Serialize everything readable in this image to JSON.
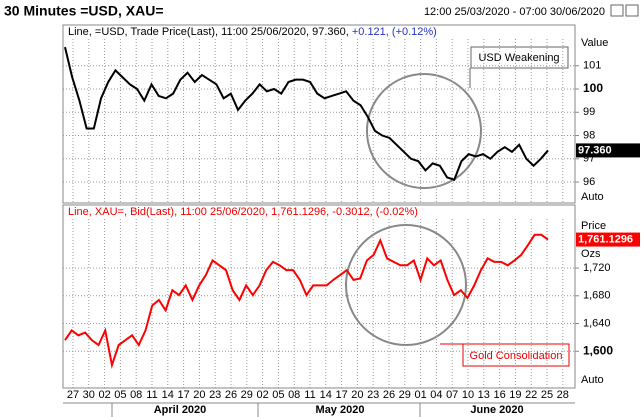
{
  "page": {
    "title": "30 Minutes =USD, XAU=",
    "range": "12:00 25/03/2020 - 07:00 30/06/2020"
  },
  "x_axis": {
    "ticks": [
      "27",
      "30",
      "02",
      "05",
      "08",
      "11",
      "14",
      "17",
      "20",
      "23",
      "26",
      "29",
      "02",
      "05",
      "08",
      "11",
      "14",
      "17",
      "20",
      "23",
      "26",
      "29",
      "01",
      "04",
      "07",
      "10",
      "13",
      "16",
      "19",
      "22",
      "25",
      "28"
    ],
    "months": [
      "April 2020",
      "May 2020",
      "June 2020"
    ]
  },
  "chart_data": [
    {
      "type": "line",
      "header": "Line, =USD, Trade Price(Last), 11:00 25/06/2020, 97.360,",
      "change": "+0.121, (+0.12%)",
      "axis_title": "Value",
      "auto": "Auto",
      "annotation": "USD Weakening",
      "ylim": [
        95.1,
        102.75
      ],
      "yticks": [
        96,
        97,
        98,
        99,
        100,
        101
      ],
      "bold_tick": 100,
      "grid": true,
      "series": [
        {
          "color": "#000000",
          "last_label": "97.360",
          "values": [
            101.8,
            100.5,
            99.5,
            98.3,
            98.3,
            99.6,
            100.3,
            100.8,
            100.5,
            100.2,
            100.0,
            99.5,
            100.2,
            99.7,
            99.6,
            99.8,
            100.4,
            100.7,
            100.3,
            100.6,
            100.4,
            100.2,
            99.6,
            99.8,
            99.1,
            99.5,
            99.8,
            100.2,
            99.9,
            100.0,
            99.8,
            100.3,
            100.4,
            100.4,
            100.3,
            99.8,
            99.6,
            99.7,
            99.8,
            99.9,
            99.5,
            99.3,
            98.8,
            98.2,
            98.0,
            97.9,
            97.6,
            97.3,
            97.0,
            96.9,
            96.5,
            96.8,
            96.7,
            96.2,
            96.1,
            96.9,
            97.2,
            97.1,
            97.2,
            97.0,
            97.3,
            97.5,
            97.3,
            97.6,
            97.0,
            96.7,
            97.0,
            97.36
          ]
        }
      ]
    },
    {
      "type": "line",
      "header": "Line, XAU=, Bid(Last), 11:00 25/06/2020, 1,761.1296, -0.3012, (-0.02%)",
      "axis_title": "Price",
      "unit": "Ozs",
      "auto": "Auto",
      "annotation": "Gold Consolidation",
      "ylim": [
        1547,
        1811
      ],
      "yticks": [
        {
          "value": 1600,
          "label": "1,600"
        },
        {
          "value": 1640,
          "label": "1,640"
        },
        {
          "value": 1680,
          "label": "1,680"
        },
        {
          "value": 1720,
          "label": "1,720"
        }
      ],
      "bold_tick": 1600,
      "grid": true,
      "series": [
        {
          "color": "#ff0000",
          "last_label": "1,761.1296",
          "values": [
            1616,
            1630,
            1623,
            1627,
            1616,
            1609,
            1630,
            1580,
            1609,
            1616,
            1623,
            1609,
            1630,
            1666,
            1674,
            1659,
            1688,
            1681,
            1695,
            1674,
            1695,
            1710,
            1731,
            1724,
            1717,
            1688,
            1674,
            1695,
            1681,
            1695,
            1717,
            1729,
            1724,
            1717,
            1717,
            1703,
            1681,
            1695,
            1695,
            1695,
            1703,
            1710,
            1717,
            1703,
            1705,
            1731,
            1739,
            1760,
            1734,
            1729,
            1724,
            1724,
            1731,
            1703,
            1734,
            1724,
            1731,
            1703,
            1681,
            1688,
            1677,
            1695,
            1717,
            1734,
            1729,
            1729,
            1724,
            1731,
            1739,
            1753,
            1768,
            1768,
            1761.1296
          ]
        }
      ]
    }
  ]
}
